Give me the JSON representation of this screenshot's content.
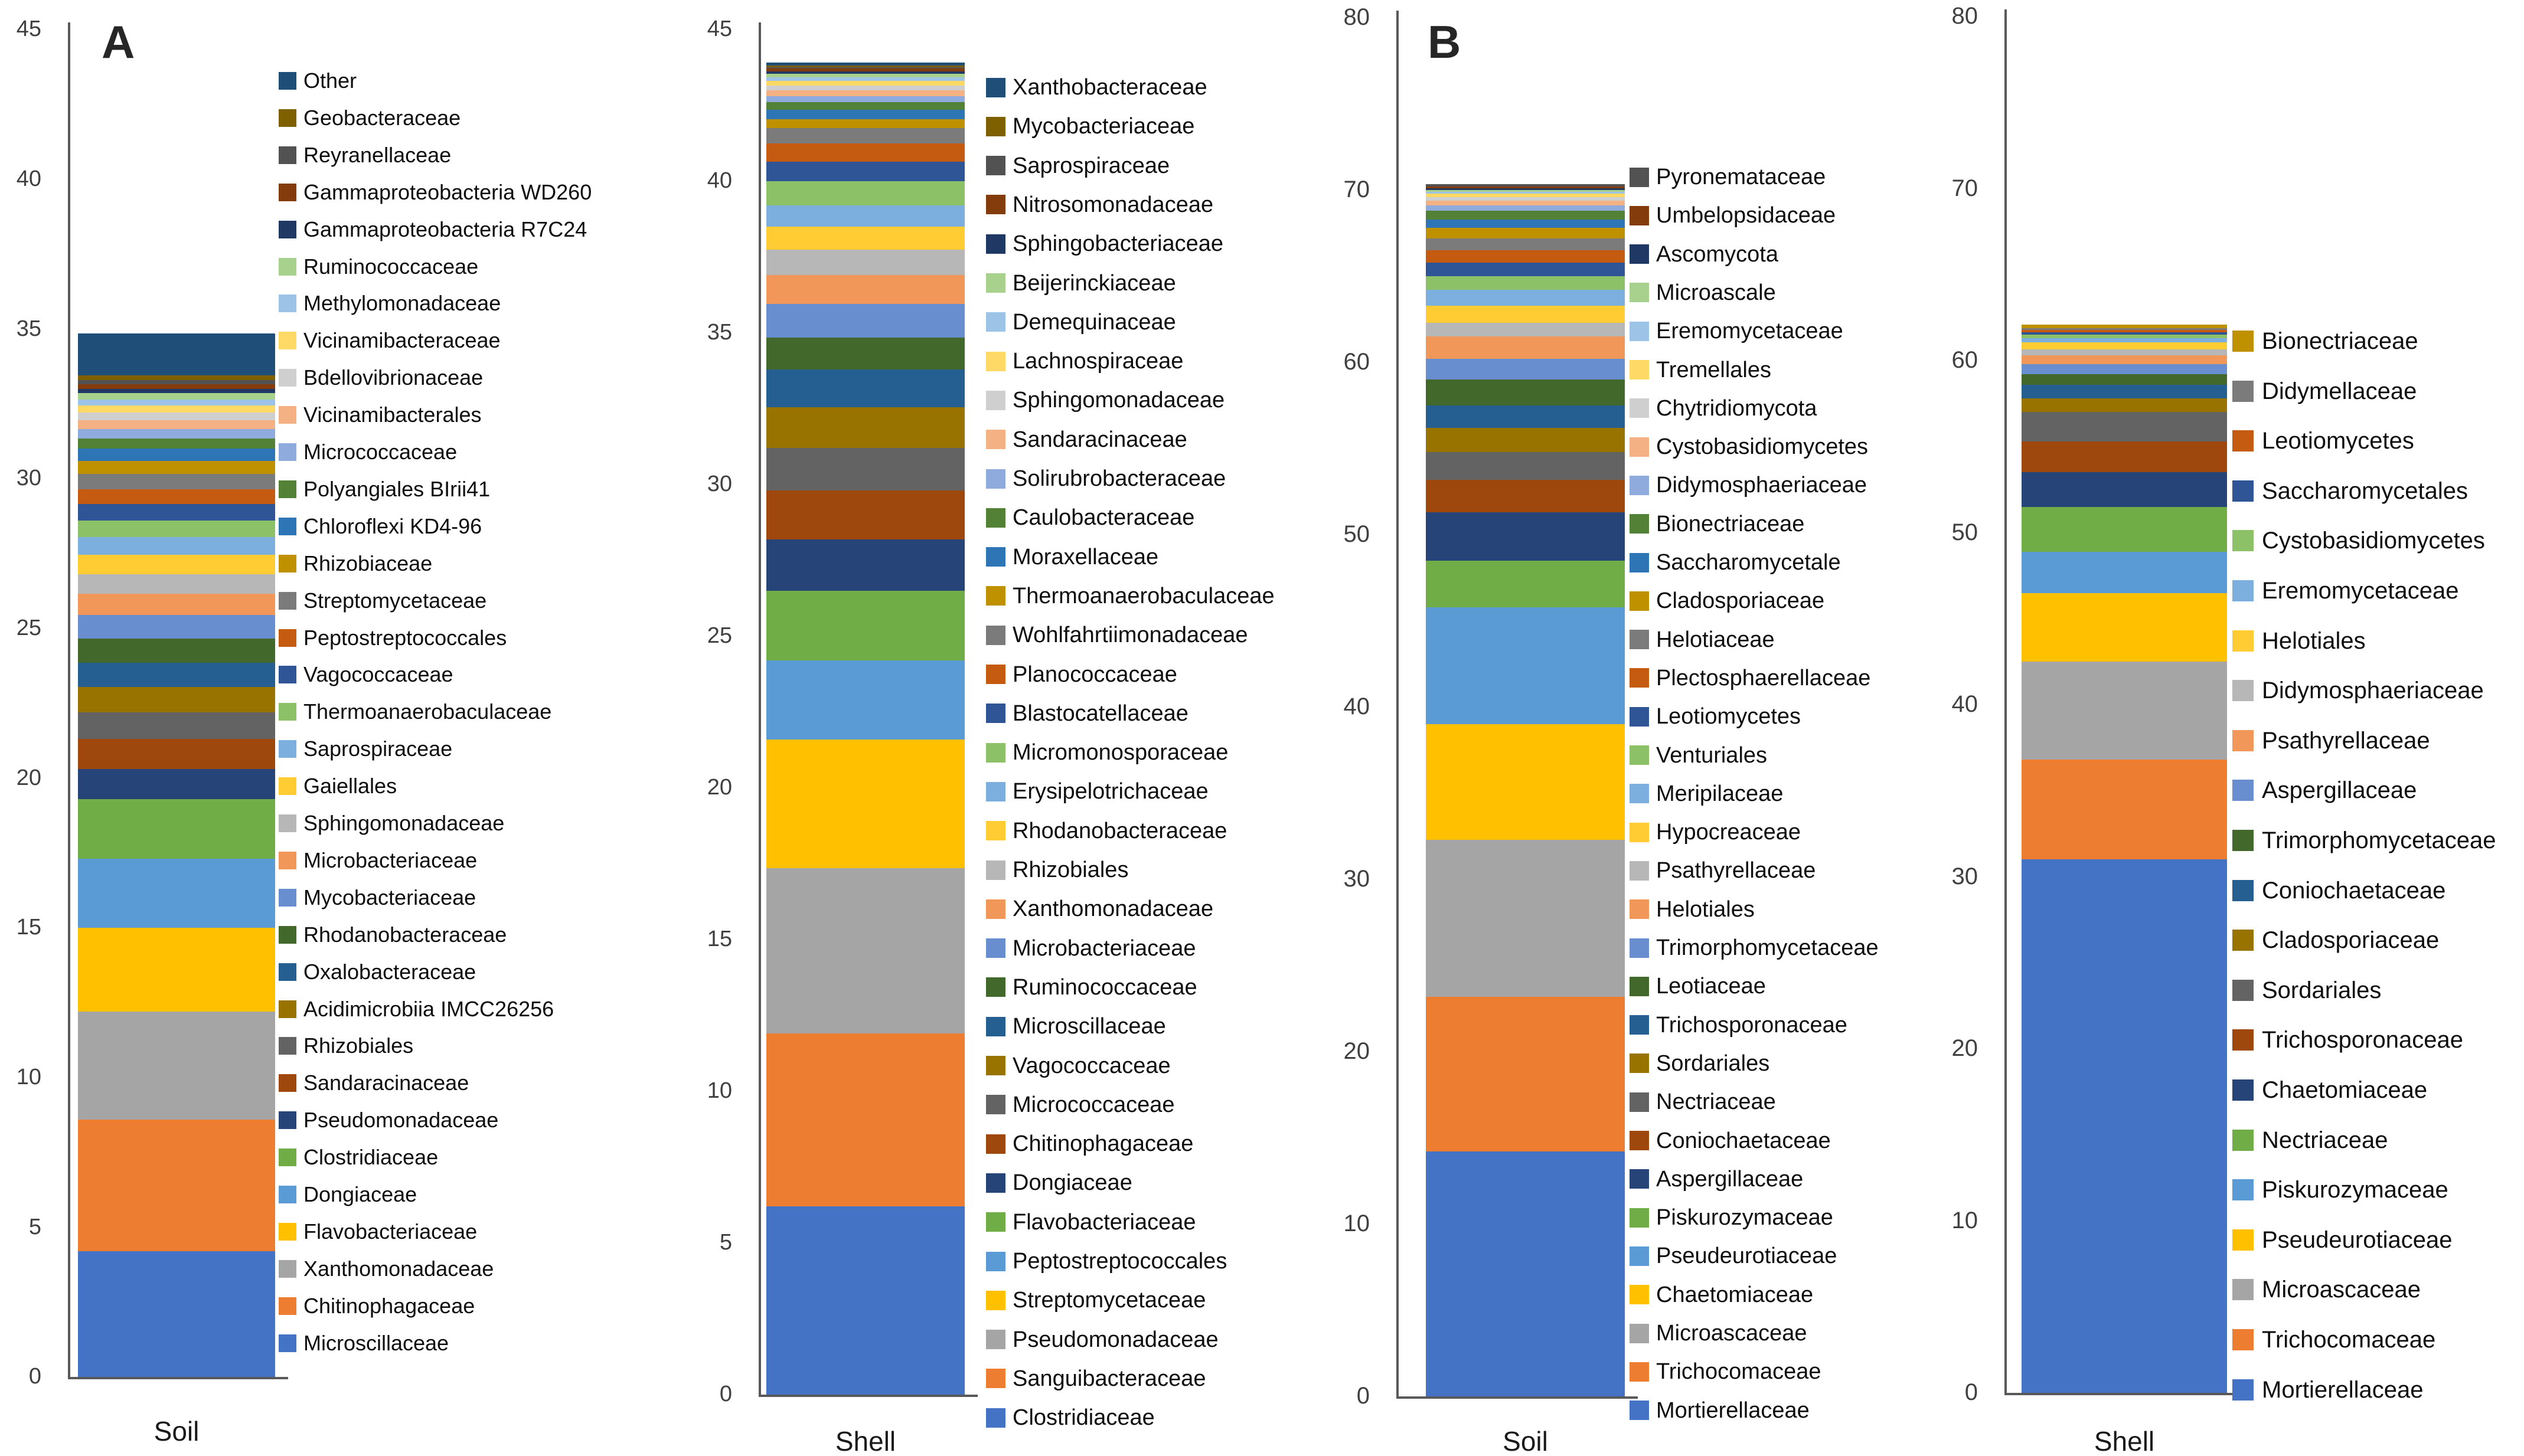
{
  "figure": {
    "background": "#ffffff",
    "panels": [
      {
        "label": "A",
        "description": "stacked bar charts of bacterial family relative abundance in Soil and Shell"
      },
      {
        "label": "B",
        "description": "stacked bar charts of fungal family relative abundance in Soil and Shell"
      }
    ]
  },
  "chart_data": [
    {
      "type": "bar",
      "stacked": true,
      "panel_label": "A",
      "category": "Soil",
      "xlabel": "Soil",
      "ylabel": "",
      "ylim": [
        0,
        45
      ],
      "ytick_step": 5,
      "grid": false,
      "legend_position": "right",
      "legend_order": "top legend item = top segment",
      "series": [
        {
          "name": "Microscillaceae",
          "value": 4.2,
          "color": "#4472C4"
        },
        {
          "name": "Chitinophagaceae",
          "value": 4.4,
          "color": "#ED7D31"
        },
        {
          "name": "Xanthomonadaceae",
          "value": 3.6,
          "color": "#A5A5A5"
        },
        {
          "name": "Flavobacteriaceae",
          "value": 2.8,
          "color": "#FFC000"
        },
        {
          "name": "Dongiaceae",
          "value": 2.3,
          "color": "#5B9BD5"
        },
        {
          "name": "Clostridiaceae",
          "value": 2.0,
          "color": "#70AD47"
        },
        {
          "name": "Pseudomonadaceae",
          "value": 1.0,
          "color": "#264478"
        },
        {
          "name": "Sandaracinaceae",
          "value": 1.0,
          "color": "#9E480E"
        },
        {
          "name": "Rhizobiales",
          "value": 0.9,
          "color": "#636363"
        },
        {
          "name": "Acidimicrobiia IMCC26256",
          "value": 0.85,
          "color": "#997300"
        },
        {
          "name": "Oxalobacteraceae",
          "value": 0.8,
          "color": "#255E91"
        },
        {
          "name": "Rhodanobacteraceae",
          "value": 0.8,
          "color": "#43682B"
        },
        {
          "name": "Mycobacteriaceae",
          "value": 0.8,
          "color": "#698ED0"
        },
        {
          "name": "Microbacteriaceae",
          "value": 0.7,
          "color": "#F1975A"
        },
        {
          "name": "Sphingomonadaceae",
          "value": 0.65,
          "color": "#B7B7B7"
        },
        {
          "name": "Gaiellales",
          "value": 0.65,
          "color": "#FFCD33"
        },
        {
          "name": "Saprospiraceae",
          "value": 0.6,
          "color": "#7CAFDD"
        },
        {
          "name": "Thermoanaerobaculaceae",
          "value": 0.55,
          "color": "#8CC168"
        },
        {
          "name": "Vagococcaceae",
          "value": 0.55,
          "color": "#2F5597"
        },
        {
          "name": "Peptostreptococcales",
          "value": 0.5,
          "color": "#C55A11"
        },
        {
          "name": "Streptomycetaceae",
          "value": 0.5,
          "color": "#7B7B7B"
        },
        {
          "name": "Rhizobiaceae",
          "value": 0.45,
          "color": "#BF9000"
        },
        {
          "name": "Chloroflexi KD4-96",
          "value": 0.4,
          "color": "#2E75B6"
        },
        {
          "name": "Polyangiales BIrii41",
          "value": 0.35,
          "color": "#538135"
        },
        {
          "name": "Micrococcaceae",
          "value": 0.3,
          "color": "#8FAADC"
        },
        {
          "name": "Vicinamibacterales",
          "value": 0.3,
          "color": "#F4B183"
        },
        {
          "name": "Bdellovibrionaceae",
          "value": 0.25,
          "color": "#CFCFCF"
        },
        {
          "name": "Vicinamibacteraceae",
          "value": 0.25,
          "color": "#FFD966"
        },
        {
          "name": "Methylomonadaceae",
          "value": 0.2,
          "color": "#9DC3E6"
        },
        {
          "name": "Ruminococcaceae",
          "value": 0.2,
          "color": "#A9D18E"
        },
        {
          "name": "Gammaproteobacteria R7C24",
          "value": 0.15,
          "color": "#1F3864"
        },
        {
          "name": "Gammaproteobacteria WD260",
          "value": 0.15,
          "color": "#843C0C"
        },
        {
          "name": "Reyranellaceae",
          "value": 0.15,
          "color": "#525252"
        },
        {
          "name": "Geobacteraceae",
          "value": 0.15,
          "color": "#7F6000"
        },
        {
          "name": "Other",
          "value": 1.4,
          "color": "#1F4E79"
        }
      ]
    },
    {
      "type": "bar",
      "stacked": true,
      "panel_label": null,
      "category": "Shell",
      "xlabel": "Shell",
      "ylabel": "",
      "ylim": [
        0,
        45
      ],
      "ytick_step": 5,
      "grid": false,
      "legend_position": "right",
      "legend_order": "top legend item = top segment",
      "series": [
        {
          "name": "Clostridiaceae",
          "value": 6.2,
          "color": "#4472C4"
        },
        {
          "name": "Sanguibacteraceae",
          "value": 5.7,
          "color": "#ED7D31"
        },
        {
          "name": "Pseudomonadaceae",
          "value": 5.45,
          "color": "#A5A5A5"
        },
        {
          "name": "Streptomycetaceae",
          "value": 4.25,
          "color": "#FFC000"
        },
        {
          "name": "Peptostreptococcales",
          "value": 2.6,
          "color": "#5B9BD5"
        },
        {
          "name": "Flavobacteriaceae",
          "value": 2.3,
          "color": "#70AD47"
        },
        {
          "name": "Dongiaceae",
          "value": 1.7,
          "color": "#264478"
        },
        {
          "name": "Chitinophagaceae",
          "value": 1.6,
          "color": "#9E480E"
        },
        {
          "name": "Micrococcaceae",
          "value": 1.4,
          "color": "#636363"
        },
        {
          "name": "Vagococcaceae",
          "value": 1.35,
          "color": "#997300"
        },
        {
          "name": "Microscillaceae",
          "value": 1.25,
          "color": "#255E91"
        },
        {
          "name": "Ruminococcaceae",
          "value": 1.05,
          "color": "#43682B"
        },
        {
          "name": "Microbacteriaceae",
          "value": 1.1,
          "color": "#698ED0"
        },
        {
          "name": "Xanthomonadaceae",
          "value": 0.95,
          "color": "#F1975A"
        },
        {
          "name": "Rhizobiales",
          "value": 0.85,
          "color": "#B7B7B7"
        },
        {
          "name": "Rhodanobacteraceae",
          "value": 0.75,
          "color": "#FFCD33"
        },
        {
          "name": "Erysipelotrichaceae",
          "value": 0.7,
          "color": "#7CAFDD"
        },
        {
          "name": "Micromonosporaceae",
          "value": 0.8,
          "color": "#8CC168"
        },
        {
          "name": "Blastocatellaceae",
          "value": 0.65,
          "color": "#2F5597"
        },
        {
          "name": "Planococcaceae",
          "value": 0.6,
          "color": "#C55A11"
        },
        {
          "name": "Wohlfahrtiimonadaceae",
          "value": 0.5,
          "color": "#7B7B7B"
        },
        {
          "name": "Thermoanaerobaculaceae",
          "value": 0.3,
          "color": "#BF9000"
        },
        {
          "name": "Moraxellaceae",
          "value": 0.3,
          "color": "#2E75B6"
        },
        {
          "name": "Caulobacteraceae",
          "value": 0.25,
          "color": "#538135"
        },
        {
          "name": "Solirubrobacteraceae",
          "value": 0.2,
          "color": "#8FAADC"
        },
        {
          "name": "Sandaracinaceae",
          "value": 0.2,
          "color": "#F4B183"
        },
        {
          "name": "Sphingomonadaceae",
          "value": 0.15,
          "color": "#CFCFCF"
        },
        {
          "name": "Lachnospiraceae",
          "value": 0.15,
          "color": "#FFD966"
        },
        {
          "name": "Demequinaceae",
          "value": 0.12,
          "color": "#9DC3E6"
        },
        {
          "name": "Beijerinckiaceae",
          "value": 0.12,
          "color": "#A9D18E"
        },
        {
          "name": "Sphingobacteriaceae",
          "value": 0.07,
          "color": "#1F3864"
        },
        {
          "name": "Nitrosomonadaceae",
          "value": 0.1,
          "color": "#843C0C"
        },
        {
          "name": "Saprospiraceae",
          "value": 0.05,
          "color": "#525252"
        },
        {
          "name": "Mycobacteriaceae",
          "value": 0.05,
          "color": "#7F6000"
        },
        {
          "name": "Xanthobacteraceae",
          "value": 0.1,
          "color": "#1F4E79"
        }
      ]
    },
    {
      "type": "bar",
      "stacked": true,
      "panel_label": "B",
      "category": "Soil",
      "xlabel": "Soil",
      "ylabel": "",
      "ylim": [
        0,
        80
      ],
      "ytick_step": 10,
      "grid": false,
      "legend_position": "right",
      "legend_order": "top legend item = top segment",
      "series": [
        {
          "name": "Mortierellaceae",
          "value": 14.2,
          "color": "#4472C4"
        },
        {
          "name": "Trichocomaceae",
          "value": 9.0,
          "color": "#ED7D31"
        },
        {
          "name": "Microascaceae",
          "value": 9.1,
          "color": "#A5A5A5"
        },
        {
          "name": "Chaetomiaceae",
          "value": 6.7,
          "color": "#FFC000"
        },
        {
          "name": "Pseudeurotiaceae",
          "value": 6.8,
          "color": "#5B9BD5"
        },
        {
          "name": "Piskurozymaceae",
          "value": 2.7,
          "color": "#70AD47"
        },
        {
          "name": "Aspergillaceae",
          "value": 2.8,
          "color": "#264478"
        },
        {
          "name": "Coniochaetaceae",
          "value": 1.9,
          "color": "#9E480E"
        },
        {
          "name": "Nectriaceae",
          "value": 1.6,
          "color": "#636363"
        },
        {
          "name": "Sordariales",
          "value": 1.4,
          "color": "#997300"
        },
        {
          "name": "Trichosporonaceae",
          "value": 1.3,
          "color": "#255E91"
        },
        {
          "name": "Leotiaceae",
          "value": 1.5,
          "color": "#43682B"
        },
        {
          "name": "Trimorphomycetaceae",
          "value": 1.2,
          "color": "#698ED0"
        },
        {
          "name": "Helotiales",
          "value": 1.3,
          "color": "#F1975A"
        },
        {
          "name": "Psathyrellaceae",
          "value": 0.8,
          "color": "#B7B7B7"
        },
        {
          "name": "Hypocreaceae",
          "value": 1.0,
          "color": "#FFCD33"
        },
        {
          "name": "Meripilaceae",
          "value": 0.9,
          "color": "#7CAFDD"
        },
        {
          "name": "Venturiales",
          "value": 0.8,
          "color": "#8CC168"
        },
        {
          "name": "Leotiomycetes",
          "value": 0.8,
          "color": "#2F5597"
        },
        {
          "name": "Plectosphaerellaceae",
          "value": 0.7,
          "color": "#C55A11"
        },
        {
          "name": "Helotiaceae",
          "value": 0.7,
          "color": "#7B7B7B"
        },
        {
          "name": "Cladosporiaceae",
          "value": 0.6,
          "color": "#BF9000"
        },
        {
          "name": "Saccharomycetale",
          "value": 0.5,
          "color": "#2E75B6"
        },
        {
          "name": "Bionectriaceae",
          "value": 0.5,
          "color": "#538135"
        },
        {
          "name": "Didymosphaeriaceae",
          "value": 0.3,
          "color": "#8FAADC"
        },
        {
          "name": "Cystobasidiomycetes",
          "value": 0.3,
          "color": "#F4B183"
        },
        {
          "name": "Chytridiomycota",
          "value": 0.2,
          "color": "#CFCFCF"
        },
        {
          "name": "Tremellales",
          "value": 0.2,
          "color": "#FFD966"
        },
        {
          "name": "Eremomycetaceae",
          "value": 0.1,
          "color": "#9DC3E6"
        },
        {
          "name": "Microascale",
          "value": 0.1,
          "color": "#A9D18E"
        },
        {
          "name": "Ascomycota",
          "value": 0.1,
          "color": "#1F3864"
        },
        {
          "name": "Umbelopsidaceae",
          "value": 0.1,
          "color": "#843C0C"
        },
        {
          "name": "Pyronemataceae",
          "value": 0.15,
          "color": "#525252"
        }
      ]
    },
    {
      "type": "bar",
      "stacked": true,
      "panel_label": null,
      "category": "Shell",
      "xlabel": "Shell",
      "ylabel": "",
      "ylim": [
        0,
        80
      ],
      "ytick_step": 10,
      "grid": false,
      "legend_position": "right",
      "legend_order": "top legend item = top segment",
      "series": [
        {
          "name": "Mortierellaceae",
          "value": 31.0,
          "color": "#4472C4"
        },
        {
          "name": "Trichocomaceae",
          "value": 5.8,
          "color": "#ED7D31"
        },
        {
          "name": "Microascaceae",
          "value": 5.7,
          "color": "#A5A5A5"
        },
        {
          "name": "Pseudeurotiaceae",
          "value": 4.0,
          "color": "#FFC000"
        },
        {
          "name": "Piskurozymaceae",
          "value": 2.4,
          "color": "#5B9BD5"
        },
        {
          "name": "Nectriaceae",
          "value": 2.6,
          "color": "#70AD47"
        },
        {
          "name": "Chaetomiaceae",
          "value": 2.0,
          "color": "#264478"
        },
        {
          "name": "Trichosporonaceae",
          "value": 1.8,
          "color": "#9E480E"
        },
        {
          "name": "Sordariales",
          "value": 1.7,
          "color": "#636363"
        },
        {
          "name": "Cladosporiaceae",
          "value": 0.8,
          "color": "#997300"
        },
        {
          "name": "Coniochaetaceae",
          "value": 0.8,
          "color": "#255E91"
        },
        {
          "name": "Trimorphomycetaceae",
          "value": 0.6,
          "color": "#43682B"
        },
        {
          "name": "Aspergillaceae",
          "value": 0.6,
          "color": "#698ED0"
        },
        {
          "name": "Psathyrellaceae",
          "value": 0.5,
          "color": "#F1975A"
        },
        {
          "name": "Didymosphaeriaceae",
          "value": 0.35,
          "color": "#B7B7B7"
        },
        {
          "name": "Helotiales",
          "value": 0.4,
          "color": "#FFCD33"
        },
        {
          "name": "Eremomycetaceae",
          "value": 0.25,
          "color": "#7CAFDD"
        },
        {
          "name": "Cystobasidiomycetes",
          "value": 0.2,
          "color": "#8CC168"
        },
        {
          "name": "Saccharomycetales",
          "value": 0.15,
          "color": "#2F5597"
        },
        {
          "name": "Leotiomycetes",
          "value": 0.15,
          "color": "#C55A11"
        },
        {
          "name": "Didymellaceae",
          "value": 0.1,
          "color": "#7B7B7B"
        },
        {
          "name": "Bionectriaceae",
          "value": 0.2,
          "color": "#BF9000"
        }
      ]
    }
  ]
}
